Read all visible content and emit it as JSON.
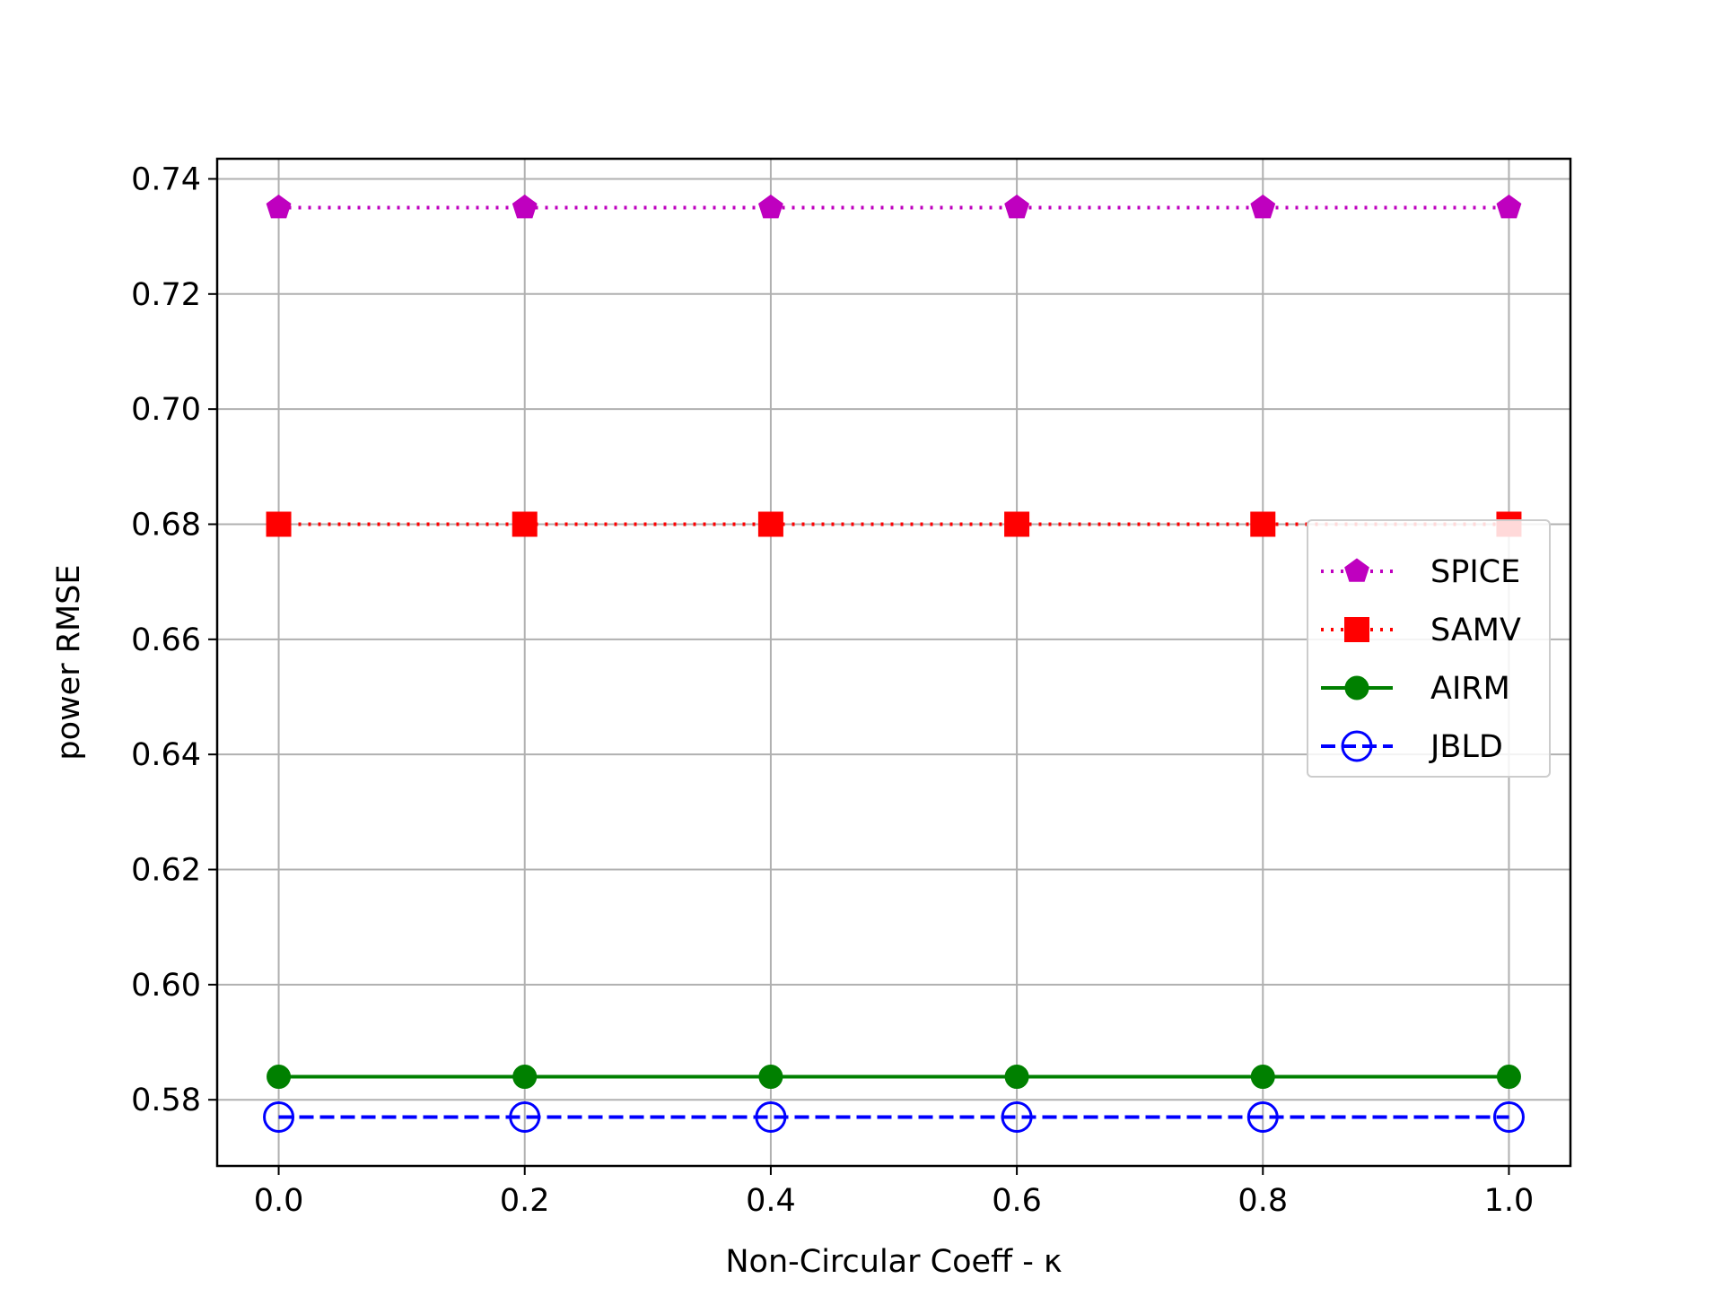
{
  "chart_data": {
    "type": "line",
    "title": "",
    "xlabel": "Non-Circular Coeff - κ",
    "ylabel": "power RMSE",
    "x": [
      0.0,
      0.2,
      0.4,
      0.6,
      0.8,
      1.0
    ],
    "xticks": [
      "0.0",
      "0.2",
      "0.4",
      "0.6",
      "0.8",
      "1.0"
    ],
    "yticks": [
      "0.58",
      "0.60",
      "0.62",
      "0.64",
      "0.66",
      "0.68",
      "0.70",
      "0.72",
      "0.74"
    ],
    "xlim": [
      -0.05,
      1.05
    ],
    "ylim": [
      0.5685,
      0.7435
    ],
    "grid": true,
    "legend_position": "center-right",
    "series": [
      {
        "name": "SPICE",
        "values": [
          0.735,
          0.735,
          0.735,
          0.735,
          0.735,
          0.735
        ],
        "color": "#bf00bf",
        "line": "dotted",
        "marker": "pentagon"
      },
      {
        "name": "SAMV",
        "values": [
          0.68,
          0.68,
          0.68,
          0.68,
          0.68,
          0.68
        ],
        "color": "#ff0000",
        "line": "dotted",
        "marker": "square"
      },
      {
        "name": "AIRM",
        "values": [
          0.584,
          0.584,
          0.584,
          0.584,
          0.584,
          0.584
        ],
        "color": "#008000",
        "line": "solid",
        "marker": "circle"
      },
      {
        "name": "JBLD",
        "values": [
          0.577,
          0.577,
          0.577,
          0.577,
          0.577,
          0.577
        ],
        "color": "#0000ff",
        "line": "dashed",
        "marker": "open-circle"
      }
    ]
  }
}
